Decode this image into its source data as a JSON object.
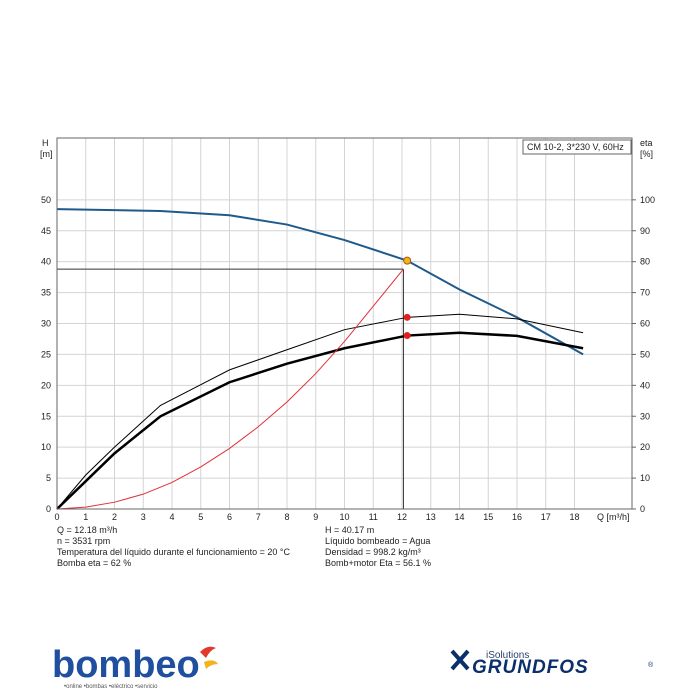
{
  "chart_data": {
    "type": "line",
    "legend_box": "CM 10-2, 3*230 V, 60Hz",
    "y_label": "H",
    "y_unit": "[m]",
    "y2_label": "eta",
    "y2_unit": "[%]",
    "x_label": "Q [m³/h]",
    "xlim": [
      0,
      20
    ],
    "xticks": [
      0,
      1,
      2,
      3,
      4,
      5,
      6,
      7,
      8,
      9,
      10,
      11,
      12,
      13,
      14,
      15,
      16,
      17,
      18
    ],
    "ylim": [
      0,
      60
    ],
    "yticks": [
      0,
      5,
      10,
      15,
      20,
      25,
      30,
      35,
      40,
      45,
      50
    ],
    "y2lim": [
      0,
      120
    ],
    "y2ticks": [
      0,
      10,
      20,
      30,
      40,
      50,
      60,
      70,
      80,
      90,
      100
    ],
    "grid": true,
    "series": [
      {
        "color": "#1f5a8a",
        "width": 2,
        "x": [
          0,
          3.6,
          6,
          8,
          10,
          12.18,
          14,
          16,
          18.3
        ],
        "values": [
          48.5,
          48.2,
          47.5,
          46,
          43.5,
          40.17,
          35.5,
          31,
          25
        ]
      },
      {
        "color": "#000000",
        "width": 1,
        "axis": "y2",
        "x": [
          0,
          1,
          2,
          3.6,
          6,
          8,
          10,
          12.18,
          14,
          16,
          18.3
        ],
        "values": [
          0,
          11,
          20,
          33.5,
          45,
          51.5,
          58,
          62,
          63,
          61.5,
          57
        ]
      },
      {
        "color": "#000000",
        "width": 2.5,
        "axis": "y2",
        "x": [
          0,
          1,
          2,
          3.6,
          6,
          8,
          10,
          12.18,
          14,
          16,
          18.3
        ],
        "values": [
          0,
          9,
          18,
          30,
          41,
          47,
          52,
          56.1,
          57,
          56,
          52
        ]
      },
      {
        "color": "#e0303a",
        "width": 1,
        "x": [
          0,
          1,
          2,
          3,
          4,
          5,
          6,
          7,
          8,
          9,
          10,
          11,
          12.05
        ],
        "values": [
          0,
          0.3,
          1.1,
          2.4,
          4.3,
          6.8,
          9.8,
          13.3,
          17.3,
          21.9,
          27.1,
          32.8,
          38.8
        ]
      }
    ],
    "crosshair": [
      12.05,
      38.8
    ],
    "markers": [
      {
        "x": 12.18,
        "y": 40.17,
        "color": "#f5b21a"
      },
      {
        "x": 12.18,
        "y": 62,
        "color": "#e02020",
        "axis": "y2"
      },
      {
        "x": 12.18,
        "y": 56.1,
        "color": "#e02020",
        "axis": "y2"
      }
    ],
    "info_left": [
      "Q = 12.18 m³/h",
      "n = 3531 rpm",
      "Temperatura del líquido durante el funcionamiento = 20 °C",
      "Bomba eta = 62 %"
    ],
    "info_right": [
      "H = 40.17 m",
      "Líquido bombeado = Agua",
      "Densidad = 998.2 kg/m³",
      "Bomb+motor Eta = 56.1 %"
    ]
  },
  "logos": {
    "bombeo": "bombeo",
    "bombeo_tagline": "•online  •bombas  •eléctrico  •servicio",
    "isolutions": "iSolutions",
    "grundfos": "GRUNDFOS",
    "registered": "®"
  }
}
